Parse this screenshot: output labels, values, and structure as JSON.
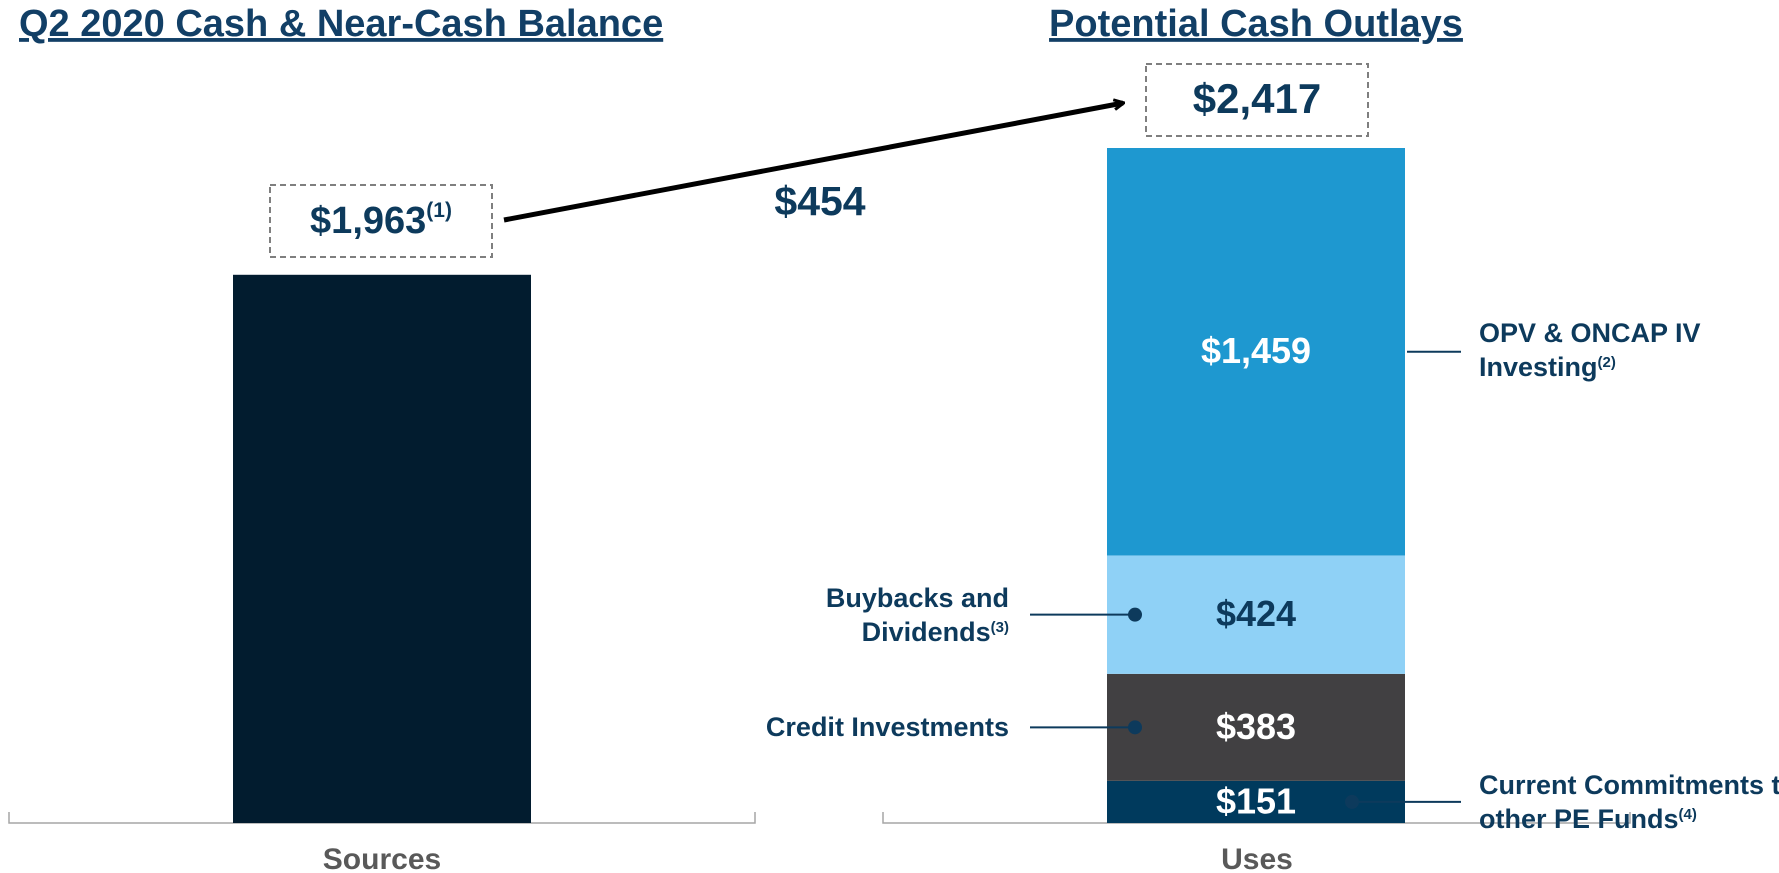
{
  "chart_data": [
    {
      "type": "bar",
      "title": "Q2 2020 Cash & Near-Cash Balance",
      "categories": [
        "Sources"
      ],
      "values": [
        1963
      ],
      "value_labels": [
        "$1,963"
      ],
      "footnote": "(1)",
      "color": "#021c2f"
    },
    {
      "type": "stacked_bar",
      "title": "Potential Cash Outlays",
      "categories": [
        "Uses"
      ],
      "series": [
        {
          "name": "Current Commitments to other PE Funds",
          "footnote": "(4)",
          "color": "#003a5d",
          "values": [
            151
          ],
          "value_labels": [
            "$151"
          ]
        },
        {
          "name": "Credit Investments",
          "color": "#414042",
          "values": [
            383
          ],
          "value_labels": [
            "$383"
          ]
        },
        {
          "name": "Buybacks and Dividends",
          "footnote": "(3)",
          "color": "#8fd1f6",
          "values": [
            424
          ],
          "value_labels": [
            "$424"
          ]
        },
        {
          "name": "OPV & ONCAP IV Investing",
          "footnote": "(2)",
          "color": "#1e98d0",
          "values": [
            1459
          ],
          "value_labels": [
            "$1,459"
          ]
        }
      ],
      "total": 2417,
      "total_label": "$2,417",
      "difference": 454,
      "difference_label": "$454"
    }
  ]
}
